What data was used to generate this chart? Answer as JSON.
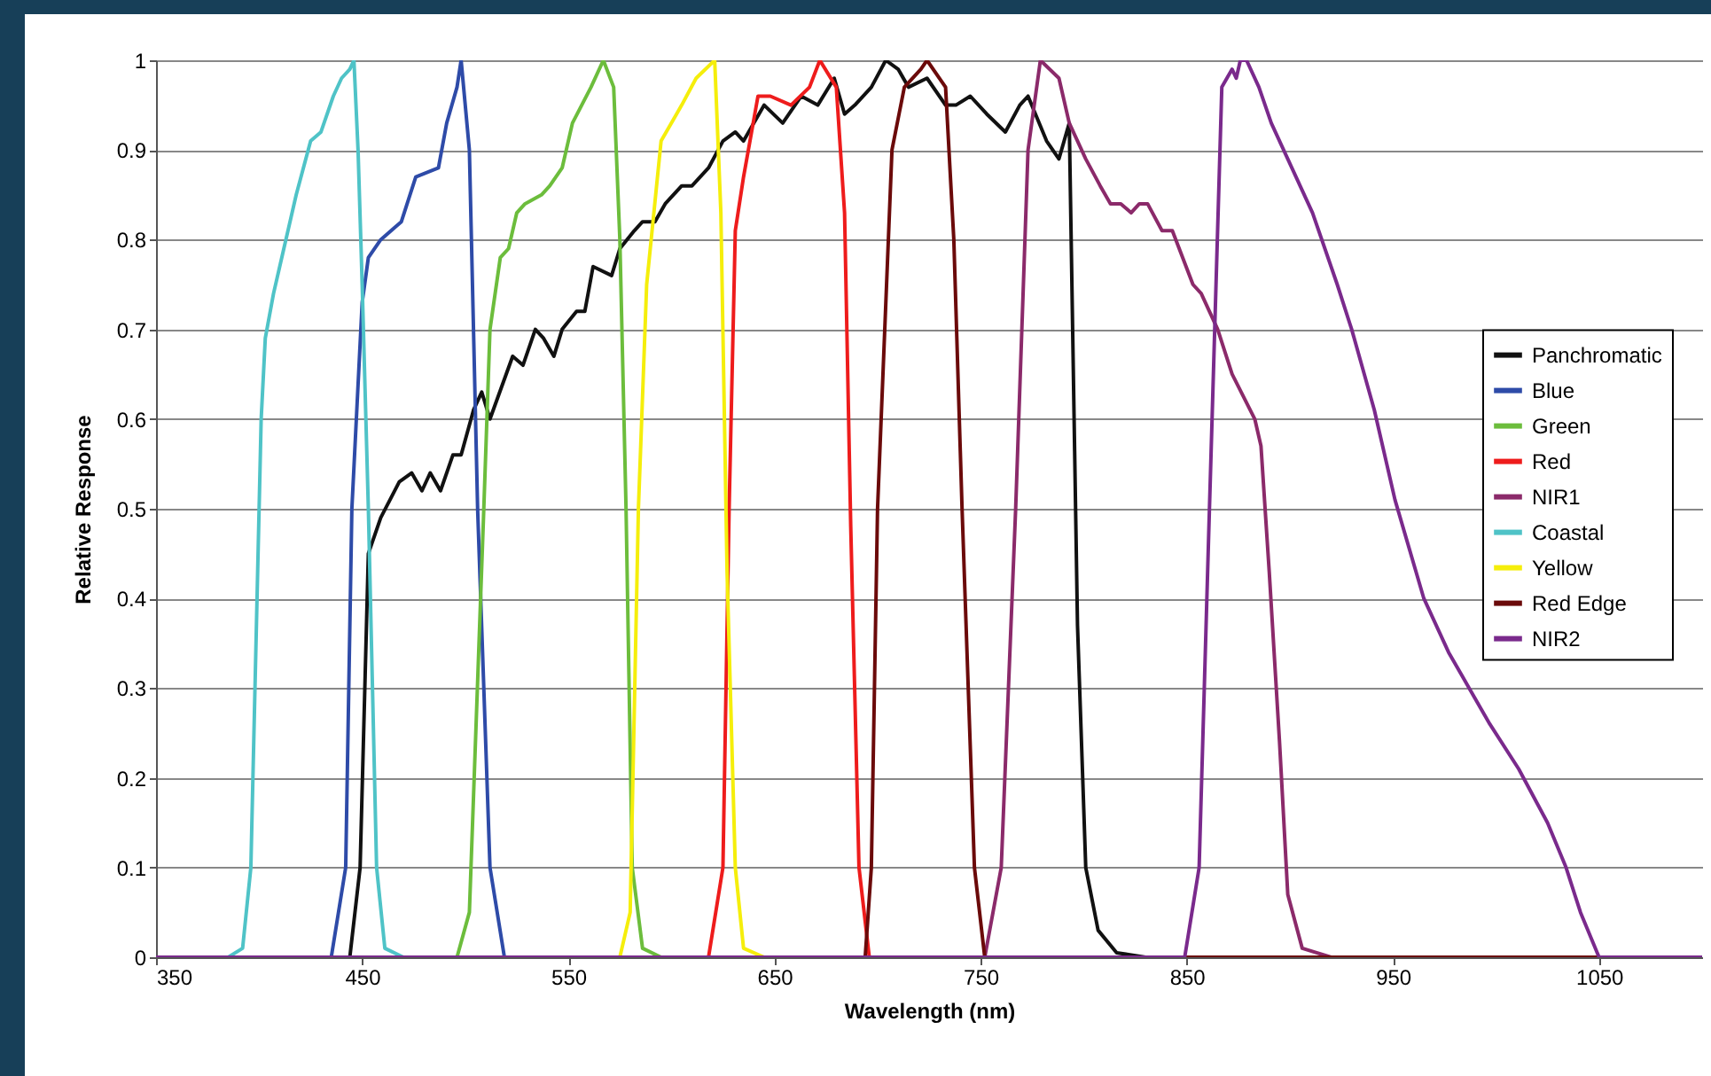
{
  "chart_data": {
    "type": "line",
    "xlabel": "Wavelength (nm)",
    "ylabel": "Relative Response",
    "xlim": [
      350,
      1100
    ],
    "xticks": [
      350,
      450,
      550,
      650,
      750,
      850,
      950,
      1050
    ],
    "ylim": [
      0,
      1
    ],
    "yticks": [
      0,
      0.1,
      0.2,
      0.3,
      0.4,
      0.5,
      0.6,
      0.7,
      0.8,
      0.9,
      1
    ],
    "grid": "y",
    "legend": "right",
    "series": [
      {
        "name": "Panchromatic",
        "color": "#111111",
        "x": [
          350,
          440,
          444,
          449,
          453,
          459,
          468,
          474,
          479,
          483,
          488,
          494,
          498,
          504,
          508,
          512,
          523,
          528,
          534,
          538,
          543,
          547,
          554,
          558,
          562,
          571,
          575,
          582,
          586,
          592,
          597,
          605,
          610,
          618,
          625,
          631,
          635,
          645,
          654,
          663,
          671,
          679,
          684,
          689,
          697,
          704,
          710,
          715,
          724,
          733,
          738,
          745,
          753,
          762,
          769,
          773,
          782,
          788,
          793,
          797,
          801,
          807,
          816,
          830,
          1100
        ],
        "values": [
          0,
          0,
          0,
          0.1,
          0.45,
          0.49,
          0.53,
          0.54,
          0.52,
          0.54,
          0.52,
          0.56,
          0.56,
          0.61,
          0.63,
          0.6,
          0.67,
          0.66,
          0.7,
          0.69,
          0.67,
          0.7,
          0.72,
          0.72,
          0.77,
          0.76,
          0.79,
          0.81,
          0.82,
          0.82,
          0.84,
          0.86,
          0.86,
          0.88,
          0.91,
          0.92,
          0.91,
          0.95,
          0.93,
          0.96,
          0.95,
          0.98,
          0.94,
          0.95,
          0.97,
          1,
          0.99,
          0.97,
          0.98,
          0.95,
          0.95,
          0.96,
          0.94,
          0.92,
          0.95,
          0.96,
          0.91,
          0.89,
          0.93,
          0.37,
          0.1,
          0.03,
          0.005,
          0,
          0
        ]
      },
      {
        "name": "Blue",
        "color": "#2e4ba8",
        "x": [
          350,
          435,
          442,
          445,
          450,
          453,
          459,
          469,
          476,
          487,
          491,
          496,
          498,
          502,
          506,
          512,
          519,
          1100
        ],
        "values": [
          0,
          0,
          0.1,
          0.5,
          0.73,
          0.78,
          0.8,
          0.82,
          0.87,
          0.88,
          0.93,
          0.97,
          1,
          0.9,
          0.5,
          0.1,
          0,
          0
        ]
      },
      {
        "name": "Green",
        "color": "#6cbd3c",
        "x": [
          350,
          496,
          502,
          509,
          512,
          517,
          521,
          525,
          529,
          537,
          541,
          547,
          552,
          561,
          567,
          572,
          575,
          578,
          581,
          586,
          595,
          1100
        ],
        "values": [
          0,
          0,
          0.05,
          0.5,
          0.7,
          0.78,
          0.79,
          0.83,
          0.84,
          0.85,
          0.86,
          0.88,
          0.93,
          0.97,
          1,
          0.97,
          0.8,
          0.5,
          0.1,
          0.01,
          0,
          0
        ]
      },
      {
        "name": "Red",
        "color": "#ee1c1c",
        "x": [
          350,
          618,
          625,
          628,
          631,
          635,
          642,
          648,
          658,
          667,
          672,
          680,
          684,
          687,
          691,
          696,
          1100
        ],
        "values": [
          0,
          0,
          0.1,
          0.5,
          0.81,
          0.87,
          0.96,
          0.96,
          0.95,
          0.97,
          1,
          0.97,
          0.83,
          0.48,
          0.1,
          0,
          0
        ]
      },
      {
        "name": "NIR1",
        "color": "#8b2a6a",
        "x": [
          350,
          752,
          760,
          767,
          773,
          779,
          788,
          793,
          801,
          808,
          813,
          818,
          823,
          827,
          831,
          838,
          843,
          853,
          857,
          865,
          872,
          883,
          886,
          890,
          895,
          899,
          906,
          920,
          1100
        ],
        "values": [
          0,
          0,
          0.1,
          0.5,
          0.9,
          1,
          0.98,
          0.93,
          0.89,
          0.86,
          0.84,
          0.84,
          0.83,
          0.84,
          0.84,
          0.81,
          0.81,
          0.75,
          0.74,
          0.7,
          0.65,
          0.6,
          0.57,
          0.43,
          0.24,
          0.07,
          0.01,
          0,
          0
        ]
      },
      {
        "name": "Coastal",
        "color": "#4fc3c7",
        "x": [
          350,
          385,
          392,
          396,
          399,
          401,
          403,
          407,
          412,
          418,
          425,
          430,
          436,
          440,
          444,
          446,
          448,
          450,
          453,
          455,
          457,
          461,
          470,
          1100
        ],
        "values": [
          0,
          0,
          0.01,
          0.1,
          0.4,
          0.6,
          0.69,
          0.74,
          0.79,
          0.85,
          0.91,
          0.92,
          0.96,
          0.98,
          0.99,
          1,
          0.9,
          0.75,
          0.5,
          0.3,
          0.1,
          0.01,
          0,
          0
        ]
      },
      {
        "name": "Yellow",
        "color": "#f5ee0b",
        "x": [
          350,
          575,
          580,
          584,
          588,
          595,
          605,
          612,
          621,
          624,
          627,
          631,
          635,
          645,
          1100
        ],
        "values": [
          0,
          0,
          0.05,
          0.5,
          0.75,
          0.91,
          0.95,
          0.98,
          1,
          0.83,
          0.43,
          0.1,
          0.01,
          0,
          0
        ]
      },
      {
        "name": "Red Edge",
        "color": "#6b0a0a",
        "x": [
          350,
          694,
          697,
          700,
          707,
          713,
          721,
          724,
          733,
          737,
          741,
          747,
          752,
          1100
        ],
        "values": [
          0,
          0,
          0.1,
          0.5,
          0.9,
          0.97,
          0.99,
          1,
          0.97,
          0.8,
          0.5,
          0.1,
          0,
          0
        ]
      },
      {
        "name": "NIR2",
        "color": "#7a2a8c",
        "x": [
          350,
          849,
          856,
          861,
          867,
          872,
          874,
          876,
          879,
          885,
          891,
          899,
          911,
          923,
          930,
          941,
          951,
          965,
          977,
          987,
          997,
          1011,
          1025,
          1034,
          1041,
          1050,
          1100
        ],
        "values": [
          0,
          0,
          0.1,
          0.5,
          0.97,
          0.99,
          0.98,
          1,
          1,
          0.97,
          0.93,
          0.89,
          0.83,
          0.75,
          0.7,
          0.61,
          0.51,
          0.4,
          0.34,
          0.3,
          0.26,
          0.21,
          0.15,
          0.1,
          0.05,
          0,
          0
        ]
      }
    ]
  }
}
